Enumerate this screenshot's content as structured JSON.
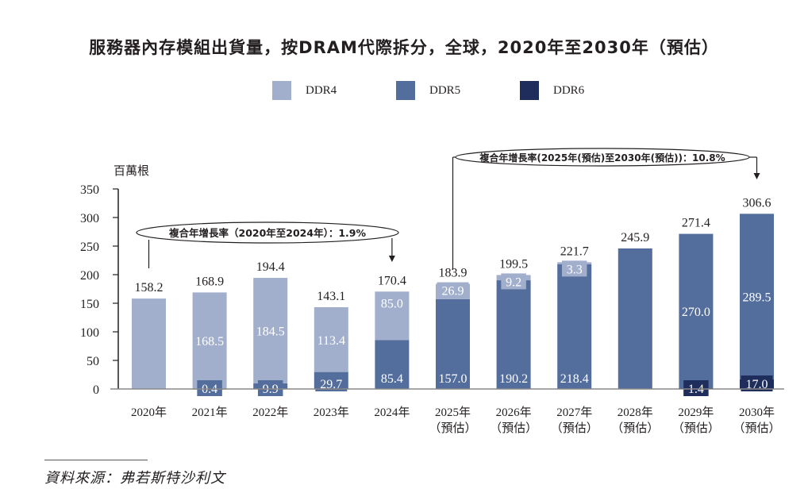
{
  "chart_data": {
    "type": "bar",
    "stacked": true,
    "title": "服務器內存模組出貨量，按DRAM代際拆分，全球，2020年至2030年（預估）",
    "ylabel": "百萬根",
    "xlabel": "",
    "ylim": [
      0,
      350
    ],
    "yticks": [
      "0",
      "50",
      "100",
      "150",
      "200",
      "250",
      "300",
      "350"
    ],
    "categories": [
      {
        "year": "2020年",
        "note": ""
      },
      {
        "year": "2021年",
        "note": ""
      },
      {
        "year": "2022年",
        "note": ""
      },
      {
        "year": "2023年",
        "note": ""
      },
      {
        "year": "2024年",
        "note": ""
      },
      {
        "year": "2025年",
        "note": "（預估）"
      },
      {
        "year": "2026年",
        "note": "（預估）"
      },
      {
        "year": "2027年",
        "note": "（預估）"
      },
      {
        "year": "2028年",
        "note": "（預估）"
      },
      {
        "year": "2029年",
        "note": "（預估）"
      },
      {
        "year": "2030年",
        "note": "（預估）"
      }
    ],
    "series": [
      {
        "name": "DDR6",
        "color": "#1f2d5c",
        "values": [
          0,
          0,
          0,
          0,
          0,
          0,
          0,
          0,
          0,
          1.4,
          17.0
        ],
        "labels": [
          "",
          "",
          "",
          "",
          "",
          "",
          "",
          "",
          "",
          "1.4",
          "17.0"
        ]
      },
      {
        "name": "DDR5",
        "color": "#536d9c",
        "values": [
          0,
          0.4,
          9.9,
          29.7,
          85.4,
          157.0,
          190.2,
          218.4,
          245.9,
          270.0,
          289.5
        ],
        "labels": [
          "",
          "0.4",
          "9.9",
          "29.7",
          "85.4",
          "157.0",
          "190.2",
          "218.4",
          "",
          "270.0",
          "289.5"
        ]
      },
      {
        "name": "DDR4",
        "color": "#a1afcd",
        "values": [
          158.2,
          168.5,
          184.5,
          113.4,
          85.0,
          26.9,
          9.2,
          3.3,
          0,
          0,
          0
        ],
        "labels": [
          "",
          "168.5",
          "184.5",
          "113.4",
          "85.0",
          "26.9",
          "9.2",
          "3.3",
          "",
          "",
          ""
        ]
      }
    ],
    "totals": [
      "158.2",
      "168.9",
      "194.4",
      "143.1",
      "170.4",
      "183.9",
      "199.5",
      "221.7",
      "245.9",
      "271.4",
      "306.6"
    ],
    "legend": {
      "position": "top",
      "entries": [
        "DDR4",
        "DDR5",
        "DDR6"
      ]
    },
    "annotations": [
      {
        "text": "複合年增長率（2020年至2024年）：1.9%",
        "from": "2020年",
        "to": "2024年"
      },
      {
        "text": "複合年增長率(2025年(預估)至2030年(預估))：10.8%",
        "from": "2025年",
        "to": "2030年"
      }
    ],
    "grid": false
  },
  "legend": {
    "ddr4": {
      "label": "DDR4",
      "color": "#a1afcd"
    },
    "ddr5": {
      "label": "DDR5",
      "color": "#536d9c"
    },
    "ddr6": {
      "label": "DDR6",
      "color": "#1f2d5c"
    }
  },
  "title": "服務器內存模組出貨量，按DRAM代際拆分，全球，2020年至2030年（預估）",
  "source": "資料來源：弗若斯特沙利文"
}
